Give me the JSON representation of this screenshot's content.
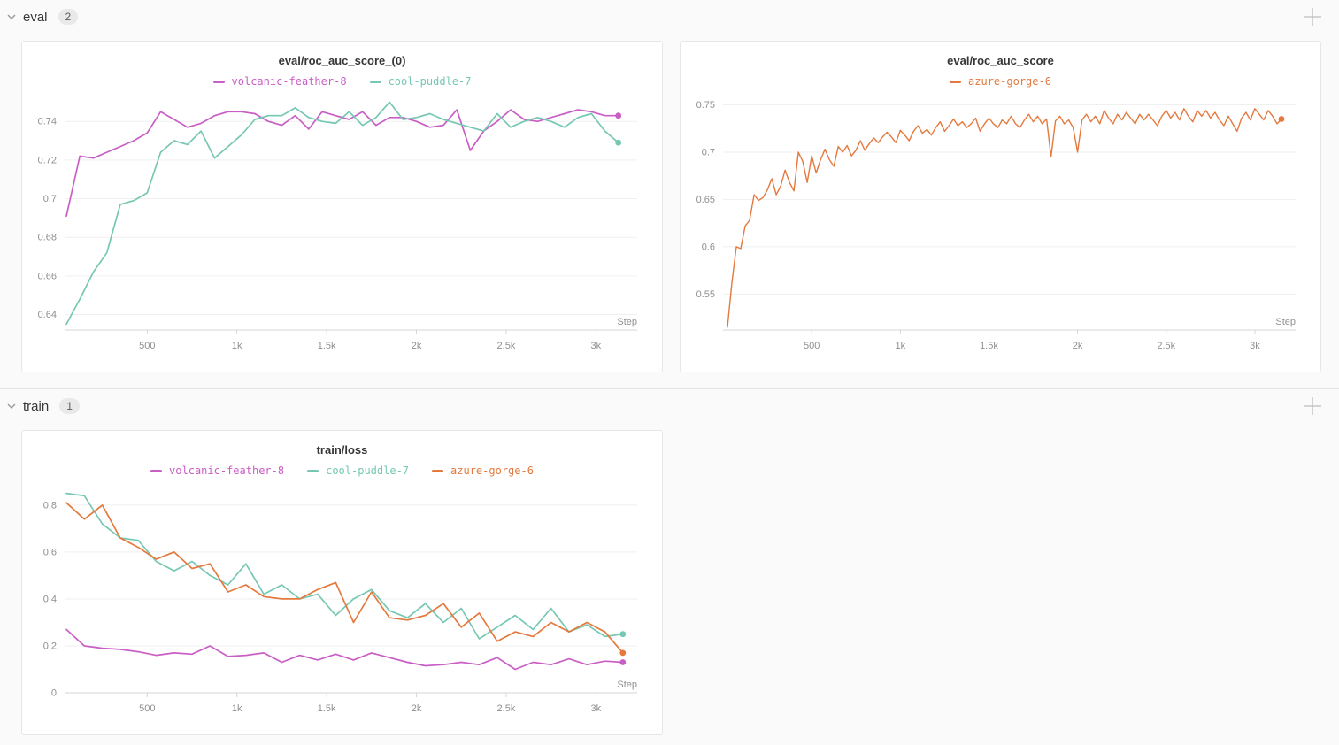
{
  "sections": [
    {
      "label": "eval",
      "count": "2"
    },
    {
      "label": "train",
      "count": "1"
    }
  ],
  "icons": {
    "section_collapse": "chevron-down-icon",
    "section_add": "plus-icon"
  },
  "colors": {
    "page_bg": "#fafafa",
    "panel_bg": "#ffffff",
    "panel_border": "#e6e6e6",
    "grid": "#efefef",
    "axis": "#d6d6d6",
    "tick_text": "#8f8f8f",
    "run_magenta": "#c95ec5",
    "run_teal": "#76c7b3",
    "run_orange": "#e5793d"
  },
  "chart_data": [
    {
      "type": "line",
      "title": "eval/roc_auc_score_(0)",
      "xlabel": "Step",
      "legend_position": "top-center",
      "grid": "horizontal",
      "xlim": [
        40,
        3230
      ],
      "ylim": [
        0.632,
        0.752
      ],
      "xticks": [
        [
          500,
          "500"
        ],
        [
          1000,
          "1k"
        ],
        [
          1500,
          "1.5k"
        ],
        [
          2000,
          "2k"
        ],
        [
          2500,
          "2.5k"
        ],
        [
          3000,
          "3k"
        ]
      ],
      "yticks": [
        [
          0.64,
          "0.64"
        ],
        [
          0.66,
          "0.66"
        ],
        [
          0.68,
          "0.68"
        ],
        [
          0.7,
          "0.7"
        ],
        [
          0.72,
          "0.72"
        ],
        [
          0.74,
          "0.74"
        ]
      ],
      "line_width": 1.7,
      "end_dot": true,
      "series": [
        {
          "name": "volcanic-feather-8",
          "color": "#c95ec5",
          "x_start": 50,
          "x_interval": 75,
          "values": [
            0.691,
            0.722,
            0.721,
            0.724,
            0.727,
            0.73,
            0.734,
            0.745,
            0.741,
            0.737,
            0.739,
            0.743,
            0.745,
            0.745,
            0.744,
            0.74,
            0.738,
            0.743,
            0.736,
            0.745,
            0.743,
            0.741,
            0.745,
            0.738,
            0.742,
            0.742,
            0.74,
            0.737,
            0.738,
            0.746,
            0.725,
            0.735,
            0.74,
            0.746,
            0.741,
            0.74,
            0.742,
            0.744,
            0.746,
            0.745,
            0.743,
            0.743
          ]
        },
        {
          "name": "cool-puddle-7",
          "color": "#76c7b3",
          "x_start": 50,
          "x_interval": 75,
          "values": [
            0.635,
            0.648,
            0.662,
            0.672,
            0.697,
            0.699,
            0.703,
            0.724,
            0.73,
            0.728,
            0.735,
            0.721,
            0.727,
            0.733,
            0.741,
            0.743,
            0.743,
            0.747,
            0.742,
            0.74,
            0.739,
            0.745,
            0.738,
            0.742,
            0.75,
            0.741,
            0.742,
            0.744,
            0.741,
            0.739,
            0.737,
            0.735,
            0.744,
            0.737,
            0.74,
            0.742,
            0.74,
            0.737,
            0.742,
            0.744,
            0.735,
            0.729
          ]
        }
      ]
    },
    {
      "type": "line",
      "title": "eval/roc_auc_score",
      "xlabel": "Step",
      "legend_position": "top-center",
      "grid": "horizontal",
      "xlim": [
        0,
        3230
      ],
      "ylim": [
        0.512,
        0.757
      ],
      "xticks": [
        [
          500,
          "500"
        ],
        [
          1000,
          "1k"
        ],
        [
          1500,
          "1.5k"
        ],
        [
          2000,
          "2k"
        ],
        [
          2500,
          "2.5k"
        ],
        [
          3000,
          "3k"
        ]
      ],
      "yticks": [
        [
          0.55,
          "0.55"
        ],
        [
          0.6,
          "0.6"
        ],
        [
          0.65,
          "0.65"
        ],
        [
          0.7,
          "0.7"
        ],
        [
          0.75,
          "0.75"
        ]
      ],
      "line_width": 1.4,
      "end_dot": true,
      "series": [
        {
          "name": "azure-gorge-6",
          "color": "#e5793d",
          "x_start": 25,
          "x_interval": 25,
          "values": [
            0.515,
            0.562,
            0.6,
            0.598,
            0.622,
            0.628,
            0.655,
            0.649,
            0.652,
            0.66,
            0.672,
            0.655,
            0.664,
            0.681,
            0.668,
            0.659,
            0.7,
            0.69,
            0.668,
            0.696,
            0.678,
            0.692,
            0.703,
            0.692,
            0.685,
            0.706,
            0.7,
            0.707,
            0.696,
            0.702,
            0.712,
            0.702,
            0.709,
            0.715,
            0.71,
            0.716,
            0.721,
            0.716,
            0.71,
            0.723,
            0.718,
            0.712,
            0.722,
            0.728,
            0.72,
            0.724,
            0.718,
            0.726,
            0.732,
            0.722,
            0.728,
            0.735,
            0.728,
            0.732,
            0.726,
            0.73,
            0.736,
            0.722,
            0.73,
            0.736,
            0.73,
            0.726,
            0.734,
            0.73,
            0.738,
            0.73,
            0.726,
            0.734,
            0.74,
            0.732,
            0.738,
            0.73,
            0.735,
            0.695,
            0.733,
            0.738,
            0.73,
            0.734,
            0.726,
            0.7,
            0.734,
            0.74,
            0.732,
            0.738,
            0.73,
            0.744,
            0.736,
            0.73,
            0.74,
            0.734,
            0.742,
            0.736,
            0.73,
            0.74,
            0.734,
            0.74,
            0.734,
            0.728,
            0.738,
            0.744,
            0.736,
            0.742,
            0.734,
            0.746,
            0.738,
            0.732,
            0.744,
            0.738,
            0.744,
            0.736,
            0.742,
            0.734,
            0.728,
            0.738,
            0.73,
            0.722,
            0.736,
            0.742,
            0.734,
            0.746,
            0.74,
            0.734,
            0.744,
            0.738,
            0.73,
            0.735
          ]
        }
      ]
    },
    {
      "type": "line",
      "title": "train/loss",
      "xlabel": "Step",
      "legend_position": "top-center",
      "grid": "horizontal",
      "xlim": [
        40,
        3230
      ],
      "ylim": [
        0,
        0.875
      ],
      "xticks": [
        [
          500,
          "500"
        ],
        [
          1000,
          "1k"
        ],
        [
          1500,
          "1.5k"
        ],
        [
          2000,
          "2k"
        ],
        [
          2500,
          "2.5k"
        ],
        [
          3000,
          "3k"
        ]
      ],
      "yticks": [
        [
          0,
          "0"
        ],
        [
          0.2,
          "0.2"
        ],
        [
          0.4,
          "0.4"
        ],
        [
          0.6,
          "0.6"
        ],
        [
          0.8,
          "0.8"
        ]
      ],
      "line_width": 1.7,
      "end_dot": true,
      "series": [
        {
          "name": "volcanic-feather-8",
          "color": "#c95ec5",
          "x_start": 50,
          "x_interval": 100,
          "values": [
            0.27,
            0.2,
            0.19,
            0.185,
            0.175,
            0.16,
            0.17,
            0.165,
            0.2,
            0.155,
            0.16,
            0.17,
            0.13,
            0.16,
            0.14,
            0.165,
            0.14,
            0.17,
            0.15,
            0.13,
            0.115,
            0.12,
            0.13,
            0.12,
            0.15,
            0.1,
            0.13,
            0.12,
            0.145,
            0.12,
            0.135,
            0.13
          ]
        },
        {
          "name": "cool-puddle-7",
          "color": "#76c7b3",
          "x_start": 50,
          "x_interval": 100,
          "values": [
            0.85,
            0.84,
            0.72,
            0.66,
            0.65,
            0.56,
            0.52,
            0.56,
            0.5,
            0.46,
            0.55,
            0.42,
            0.46,
            0.4,
            0.42,
            0.33,
            0.4,
            0.44,
            0.35,
            0.32,
            0.38,
            0.3,
            0.36,
            0.23,
            0.28,
            0.33,
            0.27,
            0.36,
            0.26,
            0.29,
            0.24,
            0.25
          ]
        },
        {
          "name": "azure-gorge-6",
          "color": "#e5793d",
          "x_start": 50,
          "x_interval": 100,
          "values": [
            0.81,
            0.74,
            0.8,
            0.66,
            0.62,
            0.57,
            0.6,
            0.53,
            0.55,
            0.43,
            0.46,
            0.41,
            0.4,
            0.4,
            0.44,
            0.47,
            0.3,
            0.43,
            0.32,
            0.31,
            0.33,
            0.38,
            0.28,
            0.34,
            0.22,
            0.26,
            0.24,
            0.3,
            0.26,
            0.3,
            0.26,
            0.17
          ]
        }
      ]
    }
  ]
}
